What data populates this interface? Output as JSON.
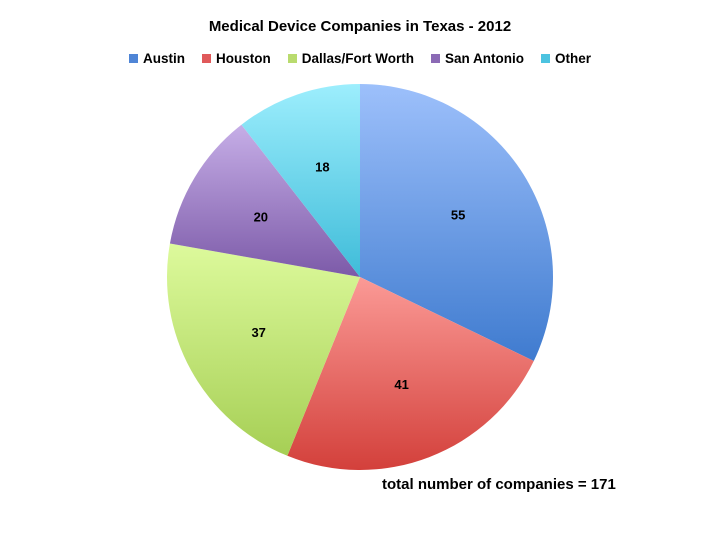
{
  "chart_data": {
    "type": "pie",
    "title": "Medical Device Companies in Texas - 2012",
    "categories": [
      "Austin",
      "Houston",
      "Dallas/Fort Worth",
      "San Antonio",
      "Other"
    ],
    "values": [
      55,
      41,
      37,
      20,
      18
    ],
    "colors": [
      "#4f85d6",
      "#e0595a",
      "#b9db6e",
      "#8b6ab5",
      "#4cc3e0"
    ],
    "start_angle": "12 o'clock",
    "direction": "clockwise",
    "data_labels": true,
    "legend_position": "top",
    "annotation": "total number of companies = 171",
    "total": 171
  },
  "title": "Medical Device Companies in Texas - 2012",
  "legend": [
    {
      "label": "Austin",
      "color": "#4f85d6"
    },
    {
      "label": "Houston",
      "color": "#e0595a"
    },
    {
      "label": "Dallas/Fort Worth",
      "color": "#b9db6e"
    },
    {
      "label": "San Antonio",
      "color": "#8b6ab5"
    },
    {
      "label": "Other",
      "color": "#4cc3e0"
    }
  ],
  "slices": [
    {
      "label": "55"
    },
    {
      "label": "41"
    },
    {
      "label": "37"
    },
    {
      "label": "20"
    },
    {
      "label": "18"
    }
  ],
  "annotation": "total number of companies = 171"
}
